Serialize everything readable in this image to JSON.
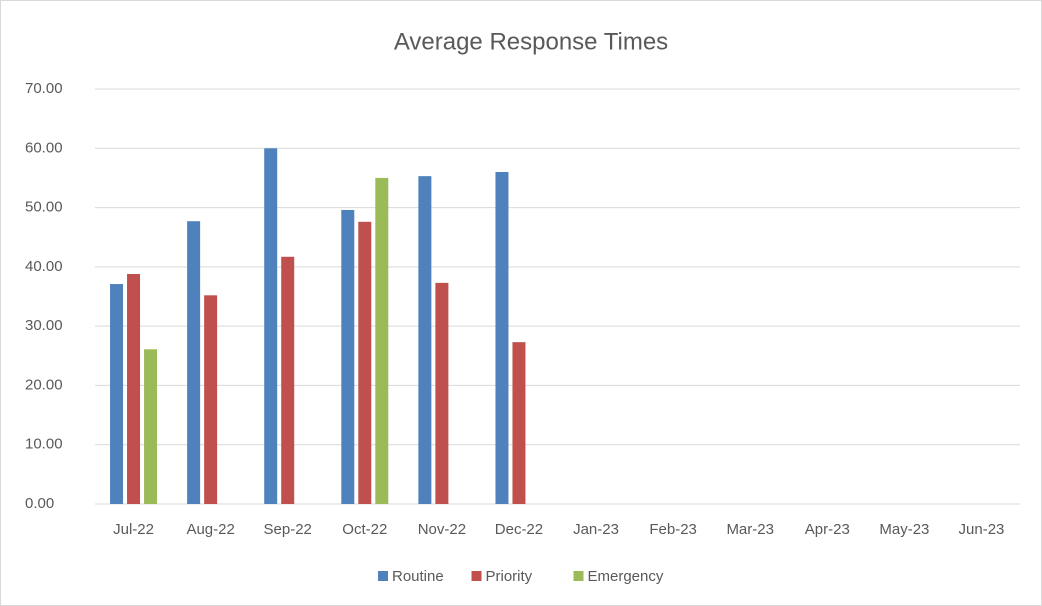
{
  "chart_data": {
    "type": "bar",
    "title": "Average Response Times",
    "categories": [
      "Jul-22",
      "Aug-22",
      "Sep-22",
      "Oct-22",
      "Nov-22",
      "Dec-22",
      "Jan-23",
      "Feb-23",
      "Mar-23",
      "Apr-23",
      "May-23",
      "Jun-23"
    ],
    "series": [
      {
        "name": "Routine",
        "color": "#4f81bd",
        "values": [
          37.1,
          47.7,
          60.0,
          49.6,
          55.3,
          56.0,
          null,
          null,
          null,
          null,
          null,
          null
        ]
      },
      {
        "name": "Priority",
        "color": "#c0504d",
        "values": [
          38.8,
          35.2,
          41.7,
          47.6,
          37.3,
          27.3,
          null,
          null,
          null,
          null,
          null,
          null
        ]
      },
      {
        "name": "Emergency",
        "color": "#9bbb59",
        "values": [
          26.1,
          null,
          null,
          55.0,
          null,
          null,
          null,
          null,
          null,
          null,
          null,
          null
        ]
      }
    ],
    "ylim": [
      0,
      70
    ],
    "yticks": [
      {
        "value": 0,
        "label": "0.00"
      },
      {
        "value": 10,
        "label": "10.00"
      },
      {
        "value": 20,
        "label": "20.00"
      },
      {
        "value": 30,
        "label": "30.00"
      },
      {
        "value": 40,
        "label": "40.00"
      },
      {
        "value": 50,
        "label": "50.00"
      },
      {
        "value": 60,
        "label": "60.00"
      },
      {
        "value": 70,
        "label": "70.00"
      }
    ],
    "grid": true,
    "legend": "bottom"
  }
}
